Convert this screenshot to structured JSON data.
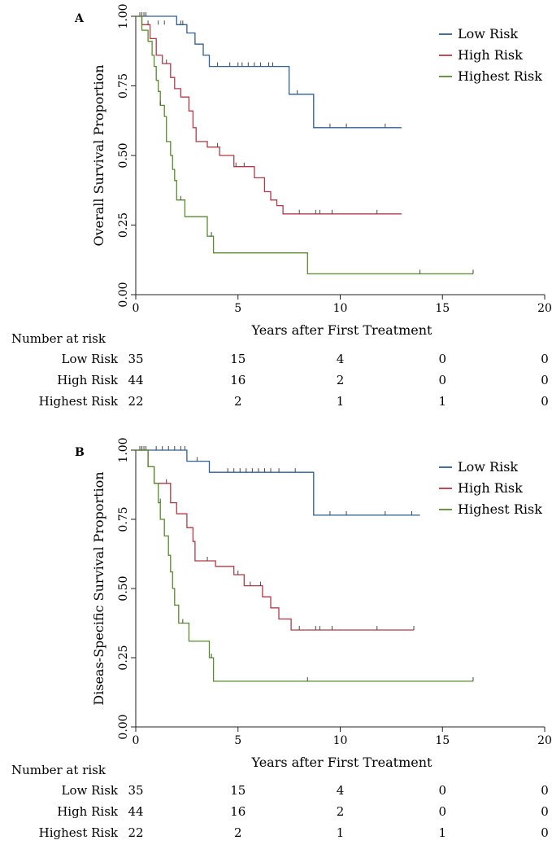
{
  "chart_data": [
    {
      "type": "line",
      "panel": "A",
      "ylabel": "Overall Survival Proportion",
      "xlabel": "Years after First Treatment",
      "xlim": [
        0,
        20
      ],
      "ylim": [
        0,
        1
      ],
      "xticks": [
        "0",
        "5",
        "10",
        "15",
        "20"
      ],
      "yticks": [
        "0.00",
        "0.25",
        "0.50",
        "0.75",
        "1.00"
      ],
      "legend_position": "top-right",
      "series": [
        {
          "name": "Low Risk",
          "color": "#2f5f96",
          "points": [
            [
              0,
              1
            ],
            [
              2.0,
              1
            ],
            [
              2.0,
              0.97
            ],
            [
              2.5,
              0.97
            ],
            [
              2.5,
              0.94
            ],
            [
              2.9,
              0.94
            ],
            [
              2.9,
              0.9
            ],
            [
              3.3,
              0.9
            ],
            [
              3.3,
              0.86
            ],
            [
              3.6,
              0.86
            ],
            [
              3.6,
              0.82
            ],
            [
              7.5,
              0.82
            ],
            [
              7.5,
              0.72
            ],
            [
              8.7,
              0.72
            ],
            [
              8.7,
              0.6
            ],
            [
              13.0,
              0.6
            ]
          ],
          "censors": [
            [
              0.2,
              1
            ],
            [
              0.3,
              1
            ],
            [
              0.4,
              1
            ],
            [
              0.5,
              1
            ],
            [
              1.1,
              0.97
            ],
            [
              1.4,
              0.97
            ],
            [
              2.2,
              0.97
            ],
            [
              2.3,
              0.97
            ],
            [
              4.0,
              0.82
            ],
            [
              4.6,
              0.82
            ],
            [
              5.0,
              0.82
            ],
            [
              5.2,
              0.82
            ],
            [
              5.5,
              0.82
            ],
            [
              5.8,
              0.82
            ],
            [
              6.1,
              0.82
            ],
            [
              6.5,
              0.82
            ],
            [
              6.7,
              0.82
            ],
            [
              7.9,
              0.72
            ],
            [
              9.5,
              0.6
            ],
            [
              10.3,
              0.6
            ],
            [
              12.2,
              0.6
            ]
          ]
        },
        {
          "name": "High Risk",
          "color": "#b23a48",
          "points": [
            [
              0,
              1
            ],
            [
              0.3,
              1
            ],
            [
              0.3,
              0.97
            ],
            [
              0.7,
              0.97
            ],
            [
              0.7,
              0.92
            ],
            [
              1.0,
              0.92
            ],
            [
              1.0,
              0.86
            ],
            [
              1.3,
              0.86
            ],
            [
              1.3,
              0.83
            ],
            [
              1.7,
              0.83
            ],
            [
              1.7,
              0.78
            ],
            [
              1.9,
              0.78
            ],
            [
              1.9,
              0.74
            ],
            [
              2.2,
              0.74
            ],
            [
              2.2,
              0.71
            ],
            [
              2.6,
              0.71
            ],
            [
              2.6,
              0.66
            ],
            [
              2.8,
              0.66
            ],
            [
              2.8,
              0.6
            ],
            [
              2.95,
              0.6
            ],
            [
              2.95,
              0.55
            ],
            [
              3.5,
              0.55
            ],
            [
              3.5,
              0.53
            ],
            [
              4.1,
              0.53
            ],
            [
              4.1,
              0.5
            ],
            [
              4.8,
              0.5
            ],
            [
              4.8,
              0.46
            ],
            [
              5.8,
              0.46
            ],
            [
              5.8,
              0.42
            ],
            [
              6.3,
              0.42
            ],
            [
              6.3,
              0.37
            ],
            [
              6.6,
              0.37
            ],
            [
              6.6,
              0.34
            ],
            [
              6.9,
              0.34
            ],
            [
              6.9,
              0.32
            ],
            [
              7.2,
              0.32
            ],
            [
              7.2,
              0.29
            ],
            [
              13.0,
              0.29
            ]
          ],
          "censors": [
            [
              0.6,
              0.97
            ],
            [
              1.5,
              0.83
            ],
            [
              4.0,
              0.53
            ],
            [
              4.9,
              0.46
            ],
            [
              5.3,
              0.46
            ],
            [
              8.0,
              0.29
            ],
            [
              8.8,
              0.29
            ],
            [
              9.0,
              0.29
            ],
            [
              9.6,
              0.29
            ],
            [
              11.8,
              0.29
            ]
          ]
        },
        {
          "name": "Highest Risk",
          "color": "#5a8a2e",
          "points": [
            [
              0,
              1
            ],
            [
              0.3,
              1
            ],
            [
              0.3,
              0.95
            ],
            [
              0.6,
              0.95
            ],
            [
              0.6,
              0.91
            ],
            [
              0.8,
              0.91
            ],
            [
              0.8,
              0.86
            ],
            [
              0.9,
              0.86
            ],
            [
              0.9,
              0.82
            ],
            [
              1.0,
              0.82
            ],
            [
              1.0,
              0.77
            ],
            [
              1.1,
              0.77
            ],
            [
              1.1,
              0.73
            ],
            [
              1.2,
              0.73
            ],
            [
              1.2,
              0.68
            ],
            [
              1.4,
              0.68
            ],
            [
              1.4,
              0.64
            ],
            [
              1.5,
              0.64
            ],
            [
              1.5,
              0.55
            ],
            [
              1.7,
              0.55
            ],
            [
              1.7,
              0.5
            ],
            [
              1.8,
              0.5
            ],
            [
              1.8,
              0.45
            ],
            [
              1.9,
              0.45
            ],
            [
              1.9,
              0.41
            ],
            [
              2.0,
              0.41
            ],
            [
              2.0,
              0.34
            ],
            [
              2.4,
              0.34
            ],
            [
              2.4,
              0.28
            ],
            [
              3.5,
              0.28
            ],
            [
              3.5,
              0.21
            ],
            [
              3.8,
              0.21
            ],
            [
              3.8,
              0.15
            ],
            [
              8.4,
              0.15
            ],
            [
              8.4,
              0.075
            ],
            [
              16.5,
              0.075
            ]
          ],
          "censors": [
            [
              1.2,
              0.68
            ],
            [
              2.2,
              0.34
            ],
            [
              3.7,
              0.21
            ],
            [
              13.9,
              0.075
            ],
            [
              16.5,
              0.075
            ]
          ]
        }
      ],
      "risk_table": {
        "title": "Number at risk",
        "times": [
          0,
          5,
          10,
          15,
          20
        ],
        "rows": [
          {
            "label": "Low Risk",
            "values": [
              "35",
              "15",
              "4",
              "0",
              "0"
            ]
          },
          {
            "label": "High Risk",
            "values": [
              "44",
              "16",
              "2",
              "0",
              "0"
            ]
          },
          {
            "label": "Highest Risk",
            "values": [
              "22",
              "2",
              "1",
              "1",
              "0"
            ]
          }
        ]
      }
    },
    {
      "type": "line",
      "panel": "B",
      "ylabel": "Diseas-Specific Survival Proportion",
      "xlabel": "Years after First Treatment",
      "xlim": [
        0,
        20
      ],
      "ylim": [
        0,
        1
      ],
      "xticks": [
        "0",
        "5",
        "10",
        "15",
        "20"
      ],
      "yticks": [
        "0.00",
        "0.25",
        "0.50",
        "0.75",
        "1.00"
      ],
      "legend_position": "top-right",
      "series": [
        {
          "name": "Low Risk",
          "color": "#2f5f96",
          "points": [
            [
              0,
              1
            ],
            [
              2.5,
              1
            ],
            [
              2.5,
              0.96
            ],
            [
              3.6,
              0.96
            ],
            [
              3.6,
              0.92
            ],
            [
              8.7,
              0.92
            ],
            [
              8.7,
              0.765
            ],
            [
              13.9,
              0.765
            ]
          ],
          "censors": [
            [
              0.2,
              1
            ],
            [
              0.3,
              1
            ],
            [
              0.4,
              1
            ],
            [
              0.5,
              1
            ],
            [
              1.0,
              1
            ],
            [
              1.3,
              1
            ],
            [
              1.6,
              1
            ],
            [
              1.9,
              1
            ],
            [
              2.2,
              1
            ],
            [
              2.4,
              1
            ],
            [
              3.0,
              0.96
            ],
            [
              4.5,
              0.92
            ],
            [
              4.8,
              0.92
            ],
            [
              5.1,
              0.92
            ],
            [
              5.4,
              0.92
            ],
            [
              5.7,
              0.92
            ],
            [
              6.0,
              0.92
            ],
            [
              6.3,
              0.92
            ],
            [
              6.6,
              0.92
            ],
            [
              7.0,
              0.92
            ],
            [
              7.8,
              0.92
            ],
            [
              9.5,
              0.765
            ],
            [
              10.3,
              0.765
            ],
            [
              12.2,
              0.765
            ],
            [
              13.5,
              0.765
            ]
          ]
        },
        {
          "name": "High Risk",
          "color": "#b23a48",
          "points": [
            [
              0,
              1
            ],
            [
              0.6,
              1
            ],
            [
              0.6,
              0.94
            ],
            [
              0.9,
              0.94
            ],
            [
              0.9,
              0.88
            ],
            [
              1.7,
              0.88
            ],
            [
              1.7,
              0.81
            ],
            [
              2.0,
              0.81
            ],
            [
              2.0,
              0.77
            ],
            [
              2.5,
              0.77
            ],
            [
              2.5,
              0.72
            ],
            [
              2.8,
              0.72
            ],
            [
              2.8,
              0.67
            ],
            [
              2.9,
              0.67
            ],
            [
              2.9,
              0.6
            ],
            [
              3.9,
              0.6
            ],
            [
              3.9,
              0.58
            ],
            [
              4.8,
              0.58
            ],
            [
              4.8,
              0.55
            ],
            [
              5.3,
              0.55
            ],
            [
              5.3,
              0.51
            ],
            [
              6.2,
              0.51
            ],
            [
              6.2,
              0.47
            ],
            [
              6.6,
              0.47
            ],
            [
              6.6,
              0.43
            ],
            [
              7.0,
              0.43
            ],
            [
              7.0,
              0.39
            ],
            [
              7.6,
              0.39
            ],
            [
              7.6,
              0.35
            ],
            [
              13.6,
              0.35
            ]
          ],
          "censors": [
            [
              0.2,
              1
            ],
            [
              1.5,
              0.88
            ],
            [
              3.5,
              0.6
            ],
            [
              5.0,
              0.55
            ],
            [
              5.6,
              0.51
            ],
            [
              6.1,
              0.51
            ],
            [
              8.0,
              0.35
            ],
            [
              8.8,
              0.35
            ],
            [
              9.0,
              0.35
            ],
            [
              9.6,
              0.35
            ],
            [
              11.8,
              0.35
            ],
            [
              13.6,
              0.35
            ]
          ]
        },
        {
          "name": "Highest Risk",
          "color": "#5a8a2e",
          "points": [
            [
              0,
              1
            ],
            [
              0.6,
              1
            ],
            [
              0.6,
              0.94
            ],
            [
              0.9,
              0.94
            ],
            [
              0.9,
              0.88
            ],
            [
              1.1,
              0.88
            ],
            [
              1.1,
              0.81
            ],
            [
              1.2,
              0.81
            ],
            [
              1.2,
              0.75
            ],
            [
              1.4,
              0.75
            ],
            [
              1.4,
              0.69
            ],
            [
              1.6,
              0.69
            ],
            [
              1.6,
              0.62
            ],
            [
              1.7,
              0.62
            ],
            [
              1.7,
              0.56
            ],
            [
              1.8,
              0.56
            ],
            [
              1.8,
              0.5
            ],
            [
              1.9,
              0.5
            ],
            [
              1.9,
              0.44
            ],
            [
              2.1,
              0.44
            ],
            [
              2.1,
              0.375
            ],
            [
              2.6,
              0.375
            ],
            [
              2.6,
              0.31
            ],
            [
              3.6,
              0.31
            ],
            [
              3.6,
              0.25
            ],
            [
              3.8,
              0.25
            ],
            [
              3.8,
              0.165
            ],
            [
              16.5,
              0.165
            ]
          ],
          "censors": [
            [
              0.3,
              1
            ],
            [
              1.2,
              0.81
            ],
            [
              2.3,
              0.375
            ],
            [
              3.7,
              0.25
            ],
            [
              8.4,
              0.165
            ],
            [
              16.5,
              0.165
            ]
          ]
        }
      ],
      "risk_table": {
        "title": "Number at risk",
        "times": [
          0,
          5,
          10,
          15,
          20
        ],
        "rows": [
          {
            "label": "Low Risk",
            "values": [
              "35",
              "15",
              "4",
              "0",
              "0"
            ]
          },
          {
            "label": "High Risk",
            "values": [
              "44",
              "16",
              "2",
              "0",
              "0"
            ]
          },
          {
            "label": "Highest Risk",
            "values": [
              "22",
              "2",
              "1",
              "1",
              "0"
            ]
          }
        ]
      }
    }
  ]
}
